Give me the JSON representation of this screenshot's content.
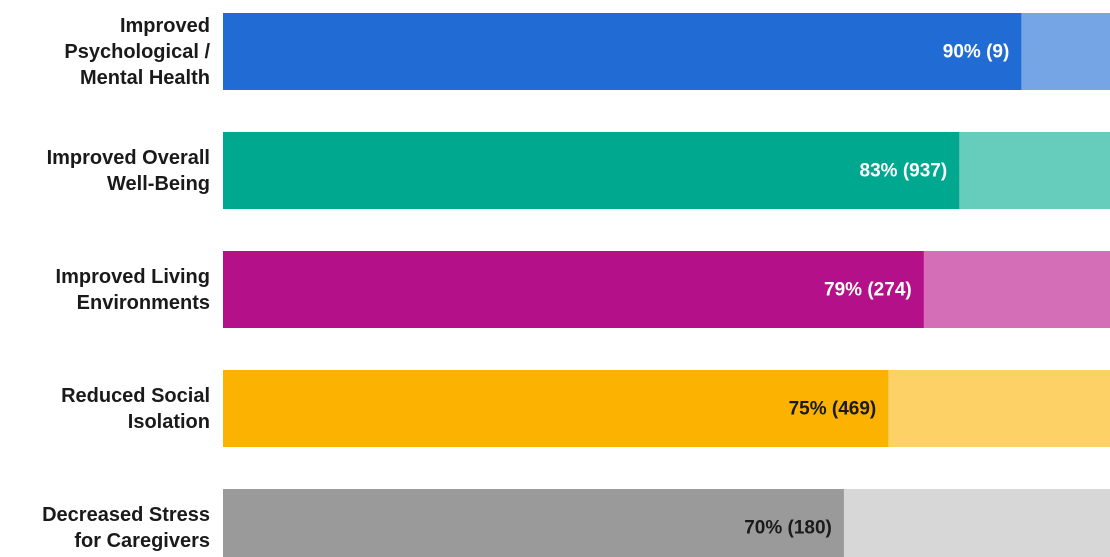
{
  "chart_data": {
    "type": "bar",
    "orientation": "horizontal",
    "categories": [
      "Improved\nPsychological /\nMental Health",
      "Improved Overall\nWell-Being",
      "Improved Living\nEnvironments",
      "Reduced Social\nIsolation",
      "Decreased Stress\nfor Caregivers"
    ],
    "values": [
      90,
      83,
      79,
      75,
      70
    ],
    "value_labels": [
      "90% (9)",
      "83% (937)",
      "79% (274)",
      "75% (469)",
      "70% (180)"
    ],
    "colors": [
      "#216bd4",
      "#00a88f",
      "#b3108a",
      "#fbb200",
      "#9a9a9a"
    ],
    "track_colors": [
      "#76a5e5",
      "#66cdbd",
      "#d46fb7",
      "#fdd166",
      "#d7d7d7"
    ],
    "label_colors": [
      "#ffffff",
      "#ffffff",
      "#ffffff",
      "#1a1a1a",
      "#1a1a1a"
    ],
    "xlim": [
      0,
      100
    ]
  }
}
